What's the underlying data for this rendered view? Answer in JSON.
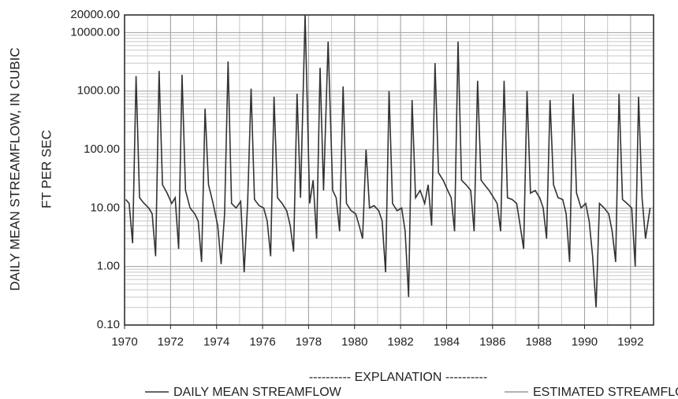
{
  "chart_data": {
    "type": "line",
    "log_y": true,
    "grid": true,
    "ylabel": [
      "DAILY MEAN STREAMFLOW, IN CUBIC",
      "FT PER SEC"
    ],
    "legend_title": "---------- EXPLANATION ----------",
    "legend": "bottom",
    "xlim": [
      1970,
      1993
    ],
    "xticks": [
      1970,
      1972,
      1974,
      1976,
      1978,
      1980,
      1982,
      1984,
      1986,
      1988,
      1990,
      1992
    ],
    "ylim": [
      0.1,
      20000
    ],
    "yticks": [
      {
        "value": 0.1,
        "label": "0.10"
      },
      {
        "value": 1,
        "label": "1.00"
      },
      {
        "value": 10,
        "label": "10.00"
      },
      {
        "value": 100,
        "label": "100.00"
      },
      {
        "value": 1000,
        "label": "1000.00"
      },
      {
        "value": 10000,
        "label": "10000.00"
      },
      {
        "value": 20000,
        "label": "20000.00"
      }
    ],
    "series": [
      {
        "name": "DAILY MEAN STREAMFLOW",
        "color": "#333333",
        "x": [
          1970.05,
          1970.2,
          1970.35,
          1970.5,
          1970.65,
          1970.85,
          1971.05,
          1971.2,
          1971.35,
          1971.5,
          1971.65,
          1971.85,
          1972.05,
          1972.2,
          1972.35,
          1972.5,
          1972.65,
          1972.85,
          1973.05,
          1973.2,
          1973.35,
          1973.5,
          1973.65,
          1973.85,
          1974.05,
          1974.2,
          1974.35,
          1974.5,
          1974.65,
          1974.85,
          1975.05,
          1975.2,
          1975.35,
          1975.5,
          1975.65,
          1975.85,
          1976.05,
          1976.2,
          1976.35,
          1976.5,
          1976.65,
          1976.85,
          1977.05,
          1977.2,
          1977.35,
          1977.5,
          1977.65,
          1977.85,
          1978.05,
          1978.2,
          1978.35,
          1978.5,
          1978.65,
          1978.85,
          1979.05,
          1979.2,
          1979.35,
          1979.5,
          1979.65,
          1979.85,
          1980.05,
          1980.2,
          1980.35,
          1980.5,
          1980.65,
          1980.85,
          1981.05,
          1981.2,
          1981.35,
          1981.5,
          1981.65,
          1981.85,
          1982.05,
          1982.2,
          1982.35,
          1982.5,
          1982.65,
          1982.85,
          1983.05,
          1983.2,
          1983.35,
          1983.5,
          1983.65,
          1983.85,
          1984.05,
          1984.2,
          1984.35,
          1984.5,
          1984.65,
          1984.85,
          1985.05,
          1985.2,
          1985.35,
          1985.5,
          1985.65,
          1985.85,
          1986.05,
          1986.2,
          1986.35,
          1986.5,
          1986.65,
          1986.85,
          1987.05,
          1987.2,
          1987.35,
          1987.5,
          1987.65,
          1987.85,
          1988.05,
          1988.2,
          1988.35,
          1988.5,
          1988.65,
          1988.85,
          1989.05,
          1989.2,
          1989.35,
          1989.5,
          1989.65,
          1989.85,
          1990.05,
          1990.2,
          1990.35,
          1990.5,
          1990.65,
          1990.85,
          1991.05,
          1991.2,
          1991.35,
          1991.5,
          1991.65,
          1991.85,
          1992.05,
          1992.2,
          1992.35,
          1992.5,
          1992.65,
          1992.85
        ],
        "values": [
          14,
          12,
          2.5,
          1800,
          15,
          12,
          10,
          8,
          1.5,
          2200,
          25,
          18,
          12,
          15,
          2,
          1900,
          20,
          10,
          8,
          6,
          1.2,
          500,
          25,
          12,
          5,
          1.1,
          8,
          3200,
          12,
          10,
          13,
          0.8,
          12,
          1100,
          14,
          11,
          10,
          6,
          1.5,
          800,
          15,
          12,
          9,
          5,
          1.8,
          900,
          15,
          20000,
          12,
          30,
          3,
          2500,
          20,
          7000,
          20,
          15,
          4,
          1200,
          12,
          9,
          8,
          5,
          3,
          100,
          10,
          11,
          9,
          6,
          0.8,
          1000,
          12,
          9,
          10,
          4,
          0.3,
          700,
          15,
          20,
          12,
          25,
          5,
          3000,
          40,
          30,
          20,
          15,
          4,
          7000,
          30,
          25,
          20,
          4,
          1500,
          30,
          25,
          20,
          15,
          12,
          4,
          1500,
          15,
          14,
          12,
          5,
          2,
          1000,
          18,
          20,
          15,
          10,
          3,
          700,
          25,
          15,
          14,
          8,
          1.2,
          900,
          18,
          10,
          12,
          6,
          1.5,
          0.2,
          12,
          10,
          8,
          4,
          1.2,
          900,
          14,
          12,
          10,
          1,
          800,
          15,
          3,
          10
        ]
      },
      {
        "name": "ESTIMATED STREAMFLOW",
        "color": "#999999",
        "x": [],
        "values": []
      }
    ]
  }
}
